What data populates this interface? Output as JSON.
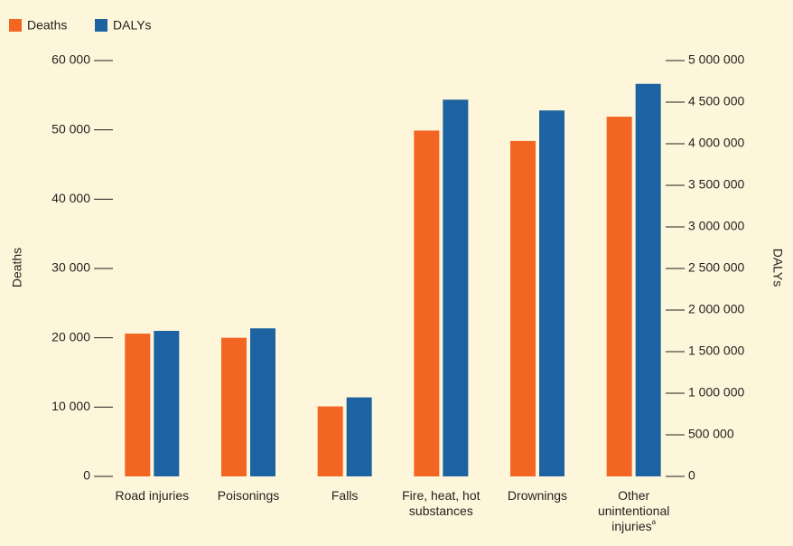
{
  "chart_data": {
    "type": "bar",
    "categories": [
      "Road injuries",
      "Poisonings",
      "Falls",
      "Fire, heat, hot substances",
      "Drownings",
      "Other unintentional injuries"
    ],
    "category_footnotes": [
      null,
      null,
      null,
      null,
      null,
      "a"
    ],
    "series": [
      {
        "name": "Deaths",
        "color": "#f26522",
        "axis": "y",
        "values": [
          20600,
          20000,
          10100,
          49900,
          48400,
          51900
        ]
      },
      {
        "name": "DALYs",
        "color": "#1d63a1",
        "axis": "y2",
        "values": [
          1750000,
          1780000,
          950000,
          4530000,
          4400000,
          4720000
        ]
      }
    ],
    "ylabel": "Deaths",
    "y2label": "DALYs",
    "ylim": [
      0,
      60000
    ],
    "yticks": [
      {
        "value": 0,
        "label": "0"
      },
      {
        "value": 10000,
        "label": "10 000"
      },
      {
        "value": 20000,
        "label": "20 000"
      },
      {
        "value": 30000,
        "label": "30 000"
      },
      {
        "value": 40000,
        "label": "40 000"
      },
      {
        "value": 50000,
        "label": "50 000"
      },
      {
        "value": 60000,
        "label": "60 000"
      }
    ],
    "y2lim": [
      0,
      5000000
    ],
    "y2ticks": [
      {
        "value": 0,
        "label": "0"
      },
      {
        "value": 500000,
        "label": "500 000"
      },
      {
        "value": 1000000,
        "label": "1 000 000"
      },
      {
        "value": 1500000,
        "label": "1 500 000"
      },
      {
        "value": 2000000,
        "label": "2 000 000"
      },
      {
        "value": 2500000,
        "label": "2 500 000"
      },
      {
        "value": 3000000,
        "label": "3 000 000"
      },
      {
        "value": 3500000,
        "label": "3 500 000"
      },
      {
        "value": 4000000,
        "label": "4 000 000"
      },
      {
        "value": 4500000,
        "label": "4 500 000"
      },
      {
        "value": 5000000,
        "label": "5 000 000"
      }
    ],
    "legend": "top-left"
  }
}
